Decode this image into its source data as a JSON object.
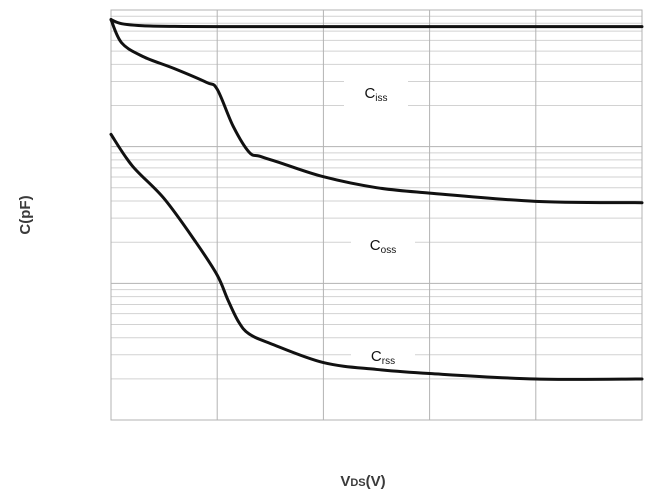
{
  "chart_data": {
    "type": "line",
    "title": "",
    "xlabel": "VDS(V)",
    "xlabel_main": "V",
    "xlabel_sub": "DS",
    "xlabel_unit": "(V)",
    "ylabel": "C(pF)",
    "x_axis": "linear, 5 divisions, no tick labels",
    "y_axis": "logarithmic, 3 decades, no tick labels",
    "xlim": [
      0,
      5
    ],
    "ylim_decades": [
      0,
      3
    ],
    "grid": true,
    "legend": "none (inline labels)",
    "colors": {
      "curve": "#111111",
      "grid_major": "#b3b3b3",
      "grid_minor": "#d2d2d2",
      "frame": "#b3b3b3"
    },
    "series": [
      {
        "name": "Ciss",
        "label_main": "C",
        "label_sub": "iss",
        "x": [
          0,
          0.1,
          0.3,
          0.6,
          1,
          2,
          3,
          4,
          5
        ],
        "y_decades": [
          2.93,
          2.9,
          2.885,
          2.88,
          2.878,
          2.878,
          2.878,
          2.878,
          2.878
        ]
      },
      {
        "name": "Coss",
        "label_main": "C",
        "label_sub": "oss",
        "x": [
          0,
          0.1,
          0.3,
          0.6,
          0.9,
          1,
          1.15,
          1.3,
          1.4,
          1.6,
          2,
          2.5,
          3,
          4,
          5
        ],
        "y_decades": [
          2.93,
          2.76,
          2.66,
          2.57,
          2.47,
          2.42,
          2.15,
          1.96,
          1.93,
          1.88,
          1.78,
          1.7,
          1.66,
          1.6,
          1.59
        ]
      },
      {
        "name": "Crss",
        "label_main": "C",
        "label_sub": "rss",
        "x": [
          0,
          0.2,
          0.5,
          0.8,
          1,
          1.1,
          1.2,
          1.3,
          1.5,
          2,
          2.5,
          3,
          4,
          5
        ],
        "y_decades": [
          2.09,
          1.86,
          1.62,
          1.3,
          1.06,
          0.88,
          0.72,
          0.63,
          0.56,
          0.42,
          0.37,
          0.34,
          0.3,
          0.3
        ]
      }
    ]
  }
}
